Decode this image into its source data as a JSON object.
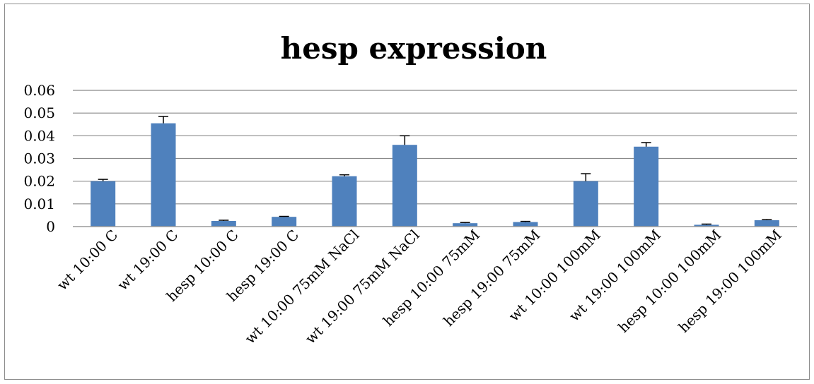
{
  "chart_data": {
    "type": "bar",
    "title": "hesp expression",
    "xlabel": "",
    "ylabel": "",
    "ylim": [
      0,
      0.06
    ],
    "yticks": [
      "0.06",
      "0.05",
      "0.04",
      "0.03",
      "0.02",
      "0.01",
      "0"
    ],
    "ytick_values": [
      0.06,
      0.05,
      0.04,
      0.03,
      0.02,
      0.01,
      0
    ],
    "grid": true,
    "legend": "none",
    "bar_color": "#4f81bd",
    "categories": [
      "wt 10:00 C",
      "wt 19:00 C",
      "hesp 10:00 C",
      "hesp 19:00 C",
      "wt 10:00 75mM NaCl",
      "wt 19:00 75mM NaCl",
      "hesp 10:00 75mM",
      "hesp 19:00 75mM",
      "wt 10:00 100mM",
      "wt 19:00 100mM",
      "hesp 10:00 100mM",
      "hesp 19:00 100mM"
    ],
    "values": [
      0.02,
      0.0455,
      0.0025,
      0.0043,
      0.0222,
      0.036,
      0.0015,
      0.002,
      0.02,
      0.0352,
      0.0008,
      0.0028
    ],
    "errors": [
      0.0008,
      0.003,
      0.0003,
      0.0002,
      0.0006,
      0.004,
      0.0003,
      0.0003,
      0.0033,
      0.0018,
      0.0003,
      0.0003
    ]
  }
}
